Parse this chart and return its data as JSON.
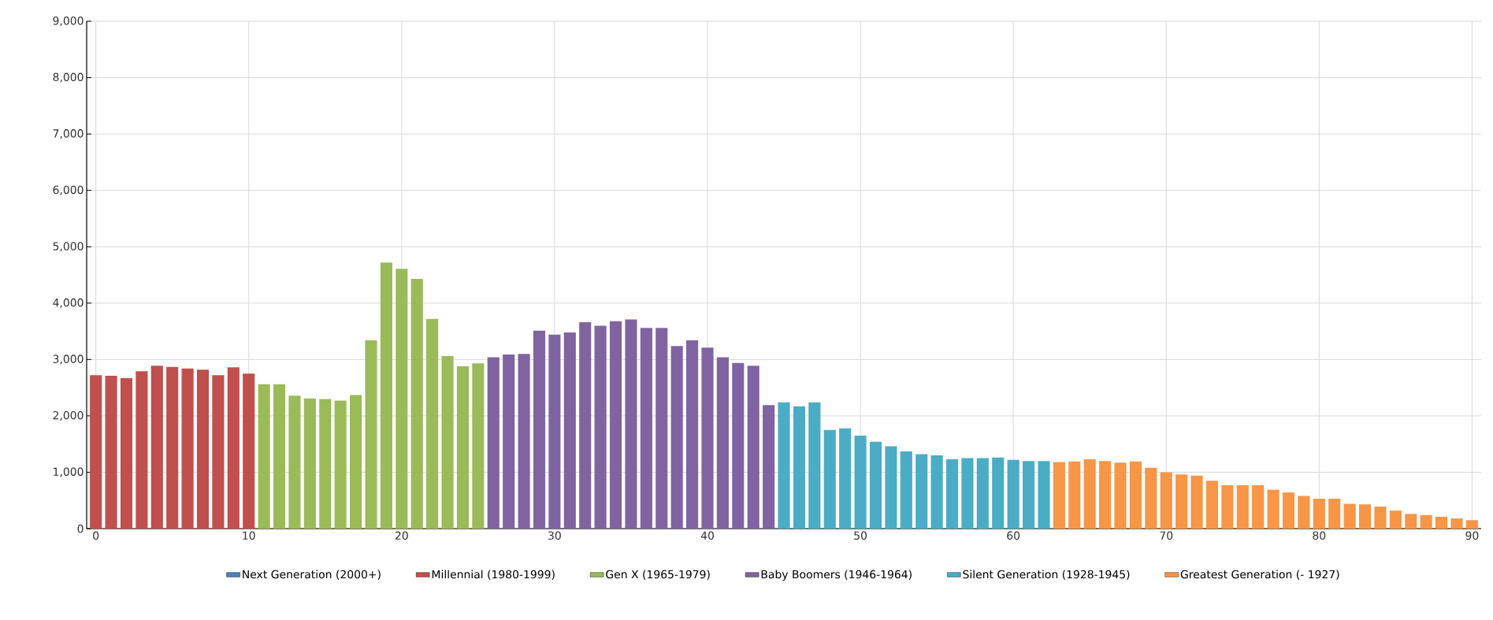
{
  "chart_data": {
    "type": "bar",
    "xlim": [
      -0.6,
      90.6
    ],
    "xticks": [
      0,
      10,
      20,
      30,
      40,
      50,
      60,
      70,
      80,
      90
    ],
    "ylim": [
      0,
      9000
    ],
    "yticks": [
      {
        "value": 0,
        "label": "0"
      },
      {
        "value": 1000,
        "label": "1,000"
      },
      {
        "value": 2000,
        "label": "2,000"
      },
      {
        "value": 3000,
        "label": "3,000"
      },
      {
        "value": 4000,
        "label": "4,000"
      },
      {
        "value": 5000,
        "label": "5,000"
      },
      {
        "value": 6000,
        "label": "6,000"
      },
      {
        "value": 7000,
        "label": "7,000"
      },
      {
        "value": 8000,
        "label": "8,000"
      },
      {
        "value": 9000,
        "label": "9,000"
      }
    ],
    "grid": true,
    "legend": "bottom",
    "series": [
      {
        "name": "Next Generation (2000+)",
        "color": "#4f81bd"
      },
      {
        "name": "Millennial (1980-1999)",
        "color": "#c0504d",
        "x": [
          0,
          1,
          2,
          3,
          4,
          5,
          6,
          7,
          8,
          9,
          10
        ],
        "values": [
          2720,
          2710,
          2670,
          2790,
          2890,
          2870,
          2840,
          2820,
          2720,
          2860,
          2750
        ]
      },
      {
        "name": "Gen X (1965-1979)",
        "color": "#9bbb59",
        "x": [
          11,
          12,
          13,
          14,
          15,
          16,
          17,
          18,
          19,
          20,
          21,
          22,
          23,
          24,
          25
        ],
        "values": [
          2560,
          2560,
          2360,
          2310,
          2300,
          2270,
          2370,
          3340,
          4720,
          4610,
          4430,
          3720,
          3060,
          2880,
          2930
        ]
      },
      {
        "name": "Baby Boomers (1946-1964)",
        "color": "#8064a2",
        "x": [
          26,
          27,
          28,
          29,
          30,
          31,
          32,
          33,
          34,
          35,
          36,
          37,
          38,
          39,
          40,
          41,
          42,
          43,
          44
        ],
        "values": [
          3040,
          3090,
          3100,
          3510,
          3440,
          3480,
          3660,
          3600,
          3680,
          3710,
          3560,
          3560,
          3240,
          3340,
          3210,
          3040,
          2940,
          2890,
          2190
        ]
      },
      {
        "name": "Silent Generation (1928-1945)",
        "color": "#4bacc6",
        "x": [
          45,
          46,
          47,
          48,
          49,
          50,
          51,
          52,
          53,
          54,
          55,
          56,
          57,
          58,
          59,
          60,
          61,
          62
        ],
        "values": [
          2240,
          2170,
          2240,
          1750,
          1780,
          1650,
          1540,
          1460,
          1370,
          1320,
          1300,
          1230,
          1250,
          1250,
          1260,
          1220,
          1200,
          1200
        ]
      },
      {
        "name": "Greatest Generation (- 1927)",
        "color": "#f79646",
        "x": [
          63,
          64,
          65,
          66,
          67,
          68,
          69,
          70,
          71,
          72,
          73,
          74,
          75,
          76,
          77,
          78,
          79,
          80,
          81,
          82,
          83,
          84,
          85,
          86,
          87,
          88,
          89,
          90
        ],
        "values": [
          1180,
          1190,
          1230,
          1200,
          1170,
          1190,
          1080,
          1000,
          960,
          940,
          850,
          770,
          770,
          770,
          690,
          640,
          580,
          530,
          530,
          440,
          430,
          390,
          320,
          260,
          240,
          210,
          180,
          150
        ]
      }
    ]
  }
}
